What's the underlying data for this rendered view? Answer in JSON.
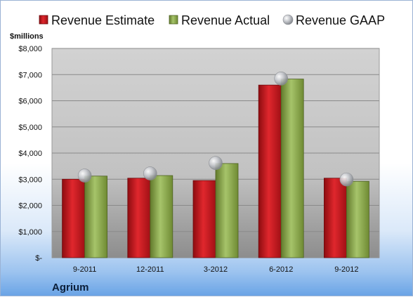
{
  "chart_data": {
    "type": "bar",
    "unit_label": "$millions",
    "company": "Agrium",
    "categories": [
      "9-2011",
      "12-2011",
      "3-2012",
      "6-2012",
      "9-2012"
    ],
    "series": [
      {
        "name": "Revenue Estimate",
        "kind": "bar",
        "color": "#c8161d",
        "values": [
          3000,
          3040,
          2950,
          6600,
          3040
        ]
      },
      {
        "name": "Revenue Actual",
        "kind": "bar",
        "color": "#8fae4a",
        "values": [
          3120,
          3140,
          3600,
          6830,
          2920
        ]
      },
      {
        "name": "Revenue GAAP",
        "kind": "marker",
        "color": "#b9bcc2",
        "values": [
          3140,
          3220,
          3620,
          6850,
          2990
        ]
      }
    ],
    "y_ticks": [
      "$-",
      "$1,000",
      "$2,000",
      "$3,000",
      "$4,000",
      "$5,000",
      "$6,000",
      "$7,000",
      "$8,000"
    ],
    "ylim": [
      0,
      8000
    ],
    "grid": true,
    "legend_position": "top"
  }
}
